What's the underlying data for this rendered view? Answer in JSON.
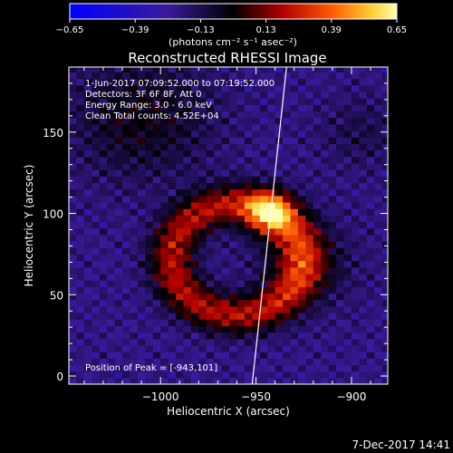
{
  "colorbar": {
    "ticks": [
      "−0.65",
      "−0.39",
      "−0.13",
      "0.13",
      "0.39",
      "0.65"
    ],
    "units": "(photons cm⁻² s⁻¹ asec⁻²)",
    "range": [
      -0.65,
      0.65
    ]
  },
  "chart_data": {
    "type": "heatmap",
    "title": "Reconstructed RHESSI Image",
    "xlabel": "Heliocentric X (arcsec)",
    "ylabel": "Heliocentric Y (arcsec)",
    "xlim": [
      -1048,
      -881
    ],
    "ylim": [
      -5,
      190
    ],
    "xticks": [
      -1000,
      -950,
      -900
    ],
    "xtick_labels": [
      "−1000",
      "−950",
      "−900"
    ],
    "yticks": [
      0,
      50,
      100,
      150
    ],
    "ytick_labels": [
      "0",
      "50",
      "100",
      "150"
    ],
    "peak": {
      "x": -943,
      "y": 101
    },
    "limb_line": [
      {
        "x": -952,
        "y": -5
      },
      {
        "x": -934,
        "y": 190
      }
    ],
    "annotations": [
      "1-Jun-2017 07:09:52.000 to 07:19:52.000",
      "Detectors: 3F 6F 8F, Att 0",
      "Energy Range: 3.0 - 6.0 keV",
      "Clean     Total counts: 4.52E+04",
      "Position of Peak = [-943,101]"
    ]
  },
  "footer": {
    "timestamp": "7-Dec-2017 14:41"
  }
}
